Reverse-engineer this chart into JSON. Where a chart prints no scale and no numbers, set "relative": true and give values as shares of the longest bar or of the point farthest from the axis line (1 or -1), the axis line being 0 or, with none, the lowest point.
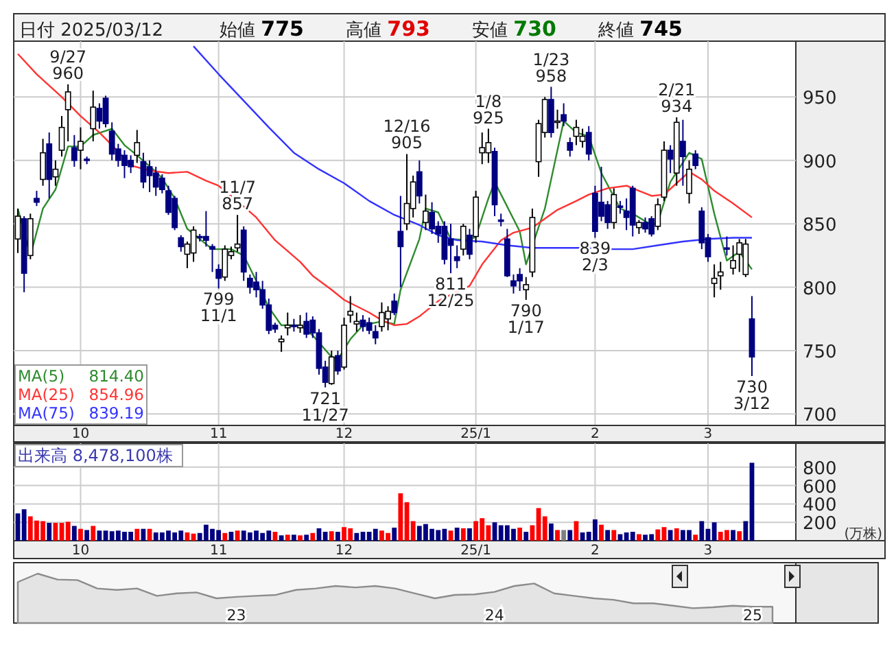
{
  "chart_data": [
    {
      "type": "candlestick",
      "ylim": [
        691,
        994
      ],
      "yticks": [
        700,
        750,
        800,
        850,
        900,
        950
      ],
      "grid": true,
      "legend": "bottom left",
      "categories": [
        null,
        null,
        null,
        null,
        null,
        null,
        null,
        null,
        null,
        null,
        "10",
        null,
        null,
        null,
        null,
        null,
        null,
        null,
        null,
        null,
        null,
        null,
        null,
        null,
        null,
        null,
        null,
        null,
        null,
        null,
        null,
        null,
        "11",
        null,
        null,
        null,
        null,
        null,
        null,
        null,
        null,
        null,
        null,
        null,
        null,
        null,
        null,
        null,
        null,
        null,
        null,
        null,
        "12",
        null,
        null,
        null,
        null,
        null,
        null,
        null,
        null,
        null,
        null,
        null,
        null,
        null,
        null,
        null,
        null,
        null,
        null,
        null,
        null,
        "25/1",
        null,
        null,
        null,
        null,
        null,
        null,
        null,
        null,
        null,
        null,
        null,
        null,
        null,
        null,
        null,
        null,
        null,
        null,
        "2",
        null,
        null,
        null,
        null,
        null,
        null,
        null,
        null,
        null,
        null,
        null,
        null,
        null,
        null,
        null,
        null,
        null,
        "3",
        null,
        null,
        null,
        null,
        null,
        null,
        null
      ],
      "ohlc": [
        [
          838,
          862,
          827,
          856
        ],
        [
          854,
          856,
          796,
          811
        ],
        [
          825,
          858,
          822,
          854
        ],
        [
          870,
          876,
          864,
          867
        ],
        [
          885,
          917,
          880,
          906
        ],
        [
          913,
          922,
          870,
          885
        ],
        [
          887,
          900,
          880,
          893
        ],
        [
          908,
          935,
          903,
          926
        ],
        [
          940,
          960,
          915,
          954
        ],
        [
          910,
          920,
          895,
          900
        ],
        [
          908,
          926,
          893,
          915
        ],
        [
          901,
          903,
          897,
          900
        ],
        [
          925,
          955,
          915,
          942
        ],
        [
          941,
          945,
          925,
          931
        ],
        [
          949,
          951,
          926,
          929
        ],
        [
          923,
          930,
          900,
          905
        ],
        [
          909,
          913,
          895,
          900
        ],
        [
          904,
          908,
          886,
          896
        ],
        [
          900,
          904,
          890,
          895
        ],
        [
          904,
          924,
          898,
          914
        ],
        [
          899,
          906,
          878,
          883
        ],
        [
          895,
          900,
          875,
          888
        ],
        [
          890,
          895,
          872,
          879
        ],
        [
          886,
          889,
          874,
          877
        ],
        [
          876,
          880,
          857,
          859
        ],
        [
          870,
          872,
          845,
          847
        ],
        [
          839,
          841,
          828,
          832
        ],
        [
          826,
          836,
          815,
          834
        ],
        [
          827,
          848,
          820,
          845
        ],
        [
          840,
          842,
          836,
          839
        ],
        [
          840,
          860,
          832,
          837
        ],
        [
          832,
          834,
          812,
          830
        ],
        [
          814,
          818,
          799,
          807
        ],
        [
          808,
          833,
          805,
          830
        ],
        [
          825,
          832,
          822,
          828
        ],
        [
          831,
          857,
          828,
          834
        ],
        [
          845,
          848,
          805,
          812
        ],
        [
          807,
          810,
          795,
          800
        ],
        [
          804,
          812,
          792,
          798
        ],
        [
          798,
          805,
          783,
          786
        ],
        [
          786,
          791,
          763,
          766
        ],
        [
          770,
          772,
          764,
          767
        ],
        [
          757,
          762,
          749,
          759
        ],
        [
          768,
          780,
          762,
          770
        ],
        [
          770,
          775,
          765,
          769
        ],
        [
          768,
          778,
          764,
          770
        ],
        [
          773,
          780,
          760,
          763
        ],
        [
          774,
          777,
          760,
          764
        ],
        [
          764,
          767,
          731,
          736
        ],
        [
          737,
          742,
          721,
          725
        ],
        [
          724,
          750,
          723,
          745
        ],
        [
          746,
          750,
          731,
          734
        ],
        [
          737,
          776,
          735,
          770
        ],
        [
          778,
          793,
          772,
          781
        ],
        [
          771,
          780,
          765,
          773
        ],
        [
          774,
          778,
          765,
          769
        ],
        [
          772,
          776,
          763,
          766
        ],
        [
          765,
          770,
          755,
          760
        ],
        [
          769,
          788,
          765,
          780
        ],
        [
          775,
          785,
          766,
          781
        ],
        [
          789,
          795,
          778,
          780
        ],
        [
          844,
          872,
          800,
          832
        ],
        [
          850,
          905,
          845,
          866
        ],
        [
          862,
          888,
          855,
          883
        ],
        [
          891,
          900,
          866,
          872
        ],
        [
          851,
          873,
          845,
          860
        ],
        [
          859,
          867,
          842,
          846
        ],
        [
          848,
          852,
          835,
          842
        ],
        [
          848,
          852,
          818,
          822
        ],
        [
          838,
          850,
          811,
          833
        ],
        [
          824,
          833,
          815,
          821
        ],
        [
          830,
          850,
          825,
          848
        ],
        [
          841,
          846,
          822,
          826
        ],
        [
          840,
          876,
          835,
          871
        ],
        [
          906,
          922,
          897,
          910
        ],
        [
          906,
          925,
          898,
          914
        ],
        [
          907,
          910,
          856,
          865
        ],
        [
          853,
          858,
          848,
          852
        ],
        [
          838,
          846,
          808,
          809
        ],
        [
          805,
          810,
          795,
          801
        ],
        [
          810,
          815,
          797,
          805
        ],
        [
          798,
          808,
          790,
          802
        ],
        [
          812,
          862,
          808,
          855
        ],
        [
          899,
          932,
          887,
          929
        ],
        [
          922,
          950,
          918,
          948
        ],
        [
          948,
          958,
          918,
          922
        ],
        [
          930,
          940,
          925,
          931
        ],
        [
          936,
          945,
          927,
          931
        ],
        [
          914,
          918,
          903,
          908
        ],
        [
          919,
          932,
          912,
          926
        ],
        [
          915,
          925,
          910,
          919
        ],
        [
          922,
          927,
          900,
          905
        ],
        [
          874,
          880,
          839,
          844
        ],
        [
          867,
          895,
          852,
          856
        ],
        [
          865,
          868,
          846,
          851
        ],
        [
          851,
          878,
          846,
          873
        ],
        [
          864,
          868,
          858,
          863
        ],
        [
          860,
          870,
          845,
          855
        ],
        [
          878,
          880,
          840,
          849
        ],
        [
          847,
          853,
          842,
          851
        ],
        [
          851,
          855,
          843,
          846
        ],
        [
          854,
          856,
          840,
          842
        ],
        [
          848,
          870,
          845,
          865
        ],
        [
          871,
          915,
          868,
          908
        ],
        [
          908,
          912,
          890,
          901
        ],
        [
          890,
          934,
          880,
          930
        ],
        [
          915,
          932,
          880,
          903
        ],
        [
          874,
          900,
          866,
          893
        ],
        [
          905,
          908,
          893,
          896
        ],
        [
          860,
          863,
          830,
          835
        ],
        [
          839,
          842,
          820,
          824
        ],
        [
          803,
          818,
          792,
          807
        ],
        [
          809,
          820,
          798,
          812
        ],
        [
          831,
          840,
          825,
          830
        ],
        [
          815,
          833,
          810,
          821
        ],
        [
          826,
          838,
          812,
          835
        ],
        [
          810,
          838,
          808,
          834
        ],
        [
          775,
          793,
          730,
          745
        ]
      ],
      "series": [
        {
          "name": "MA(5)",
          "type": "line",
          "color": "#2e8b2e",
          "values": [
            862,
            null,
            825,
            null,
            862,
            null,
            877,
            null,
            911,
            null,
            911,
            null,
            920,
            null,
            null,
            925,
            null,
            912,
            null,
            904,
            null,
            null,
            891,
            886,
            null,
            870,
            null,
            846,
            null,
            838,
            null,
            830,
            null,
            null,
            830,
            null,
            825,
            null,
            805,
            null,
            784,
            null,
            770,
            null,
            null,
            770,
            null,
            762,
            null,
            null,
            745,
            743,
            null,
            759,
            null,
            770,
            null,
            null,
            773,
            null,
            771,
            798,
            null,
            null,
            838,
            862,
            null,
            859,
            null,
            838,
            null,
            null,
            837,
            840,
            null,
            870,
            883,
            null,
            null,
            null,
            844,
            818,
            null,
            null,
            862,
            null,
            null,
            931,
            null,
            922,
            null,
            919,
            null,
            890,
            null,
            null,
            862,
            null,
            858,
            null,
            null,
            849,
            851,
            null,
            883,
            null,
            null,
            906,
            null,
            901,
            null,
            858,
            null,
            821,
            null,
            828,
            null,
            814
          ]
        },
        {
          "name": "MA(25)",
          "type": "line",
          "color": "#ff3333",
          "values": [
            984,
            null,
            null,
            968,
            null,
            null,
            null,
            950,
            null,
            null,
            935,
            null,
            null,
            922,
            null,
            912,
            null,
            null,
            896,
            null,
            null,
            892,
            null,
            null,
            890,
            null,
            null,
            891,
            null,
            null,
            884,
            null,
            880,
            null,
            null,
            868,
            null,
            null,
            855,
            null,
            null,
            837,
            null,
            null,
            null,
            820,
            null,
            809,
            null,
            null,
            798,
            null,
            790,
            null,
            null,
            null,
            780,
            null,
            774,
            null,
            770,
            null,
            771,
            null,
            777,
            null,
            null,
            789,
            null,
            794,
            null,
            null,
            801,
            null,
            818,
            null,
            null,
            837,
            null,
            843,
            null,
            null,
            847,
            null,
            854,
            null,
            861,
            null,
            null,
            868,
            null,
            873,
            null,
            null,
            878,
            null,
            null,
            880,
            null,
            876,
            null,
            872,
            null,
            873,
            null,
            882,
            null,
            891,
            null,
            885,
            null,
            876,
            null,
            null,
            866,
            null,
            null,
            855
          ]
        },
        {
          "name": "MA(75)",
          "type": "line",
          "color": "#3333ff",
          "values": [
            null,
            null,
            null,
            null,
            null,
            null,
            null,
            null,
            null,
            null,
            null,
            null,
            null,
            null,
            null,
            null,
            null,
            null,
            null,
            null,
            null,
            null,
            null,
            null,
            null,
            null,
            null,
            null,
            990,
            null,
            null,
            null,
            968,
            null,
            null,
            null,
            947,
            null,
            null,
            null,
            926,
            null,
            null,
            null,
            906,
            null,
            null,
            null,
            893,
            null,
            null,
            null,
            882,
            null,
            null,
            null,
            868,
            null,
            null,
            null,
            857,
            null,
            null,
            null,
            849,
            null,
            null,
            841,
            null,
            null,
            837,
            null,
            null,
            null,
            836,
            null,
            null,
            null,
            833,
            null,
            null,
            null,
            831,
            null,
            null,
            null,
            831,
            null,
            null,
            null,
            831,
            null,
            null,
            null,
            830,
            null,
            null,
            null,
            830,
            null,
            null,
            null,
            833,
            null,
            null,
            null,
            836,
            null,
            null,
            null,
            838,
            null,
            null,
            null,
            839,
            null,
            null,
            839
          ]
        }
      ],
      "annotations": [
        "日付 2025/03/12",
        "始値 **775**",
        "高値 **793**",
        "安値 **730**",
        "終値 **745**",
        "814.40",
        "854.96",
        "839.19",
        {
          "text": "9/27\n960",
          "y": 960
        },
        {
          "text": "799\n11/1",
          "y": 799
        },
        {
          "text": "11/7\n857",
          "y": 857
        },
        {
          "text": "721\n11/27",
          "y": 721
        },
        {
          "text": "12/16\n905",
          "y": 905
        },
        {
          "text": "811\n12/25",
          "y": 811
        },
        {
          "text": "1/8\n925",
          "y": 925
        },
        {
          "text": "790\n1/17",
          "y": 790
        },
        {
          "text": "1/23\n958",
          "y": 958
        },
        {
          "text": "839\n2/3",
          "y": 839
        },
        {
          "text": "2/21\n934",
          "y": 934
        },
        {
          "text": "730\n3/12",
          "y": 730
        }
      ]
    },
    {
      "type": "bar",
      "title": "出来高 8,478,100株",
      "ylabel": "(万株)",
      "ylim": [
        0,
        1060
      ],
      "yticks": [
        200,
        400,
        600,
        800
      ],
      "grid": true,
      "categories": [
        null,
        null,
        null,
        null,
        null,
        null,
        null,
        null,
        null,
        null,
        "10",
        null,
        null,
        null,
        null,
        null,
        null,
        null,
        null,
        null,
        null,
        null,
        null,
        null,
        null,
        null,
        null,
        null,
        null,
        null,
        null,
        null,
        "11",
        null,
        null,
        null,
        null,
        null,
        null,
        null,
        null,
        null,
        null,
        null,
        null,
        null,
        null,
        null,
        null,
        null,
        null,
        null,
        "12",
        null,
        null,
        null,
        null,
        null,
        null,
        null,
        null,
        null,
        null,
        null,
        null,
        null,
        null,
        null,
        null,
        null,
        null,
        null,
        null,
        "25/1",
        null,
        null,
        null,
        null,
        null,
        null,
        null,
        null,
        null,
        null,
        null,
        null,
        null,
        null,
        null,
        null,
        null,
        null,
        "2",
        null,
        null,
        null,
        null,
        null,
        null,
        null,
        null,
        null,
        null,
        null,
        null,
        null,
        null,
        null,
        null,
        null,
        "3",
        null,
        null,
        null,
        null,
        null,
        null,
        null
      ],
      "values": [
        297,
        342,
        265,
        219,
        213,
        194,
        194,
        194,
        206,
        161,
        129,
        116,
        161,
        110,
        110,
        103,
        110,
        97,
        97,
        129,
        129,
        129,
        90,
        90,
        110,
        90,
        110,
        90,
        77,
        84,
        174,
        129,
        116,
        84,
        97,
        110,
        110,
        90,
        110,
        84,
        110,
        97,
        58,
        65,
        65,
        58,
        65,
        84,
        135,
        97,
        103,
        97,
        148,
        135,
        84,
        97,
        97,
        129,
        110,
        84,
        142,
        516,
        419,
        213,
        161,
        181,
        129,
        116,
        129,
        110,
        142,
        135,
        135,
        213,
        245,
        168,
        200,
        168,
        168,
        129,
        142,
        97,
        168,
        355,
        265,
        187,
        116,
        116,
        116,
        213,
        90,
        97,
        232,
        174,
        116,
        116,
        71,
        90,
        97,
        71,
        65,
        71,
        123,
        148,
        116,
        135,
        116,
        116,
        65,
        213,
        129,
        200,
        97,
        116,
        116,
        103,
        213,
        847.81
      ],
      "colors": [
        "#000080",
        "#000080",
        "#ff0000",
        "#ff0000",
        "#ff0000",
        "#000080",
        "#ff0000",
        "#ff0000",
        "#ff0000",
        "#000080",
        "#ff0000",
        "#000080",
        "#ff0000",
        "#000080",
        "#000080",
        "#000080",
        "#000080",
        "#000080",
        "#000080",
        "#ff0000",
        "#000080",
        "#ff0000",
        "#000080",
        "#000080",
        "#000080",
        "#000080",
        "#000080",
        "#ff0000",
        "#ff0000",
        "#000080",
        "#000080",
        "#000080",
        "#000080",
        "#ff0000",
        "#000080",
        "#ff0000",
        "#000080",
        "#000080",
        "#000080",
        "#000080",
        "#000080",
        "#ff0000",
        "#000080",
        "#ff0000",
        "#000080",
        "#ff0000",
        "#000080",
        "#ff0000",
        "#000080",
        "#000080",
        "#ff0000",
        "#000080",
        "#ff0000",
        "#ff0000",
        "#000080",
        "#000080",
        "#000080",
        "#000080",
        "#ff0000",
        "#ff0000",
        "#000080",
        "#ff0000",
        "#ff0000",
        "#ff0000",
        "#000080",
        "#000080",
        "#000080",
        "#000080",
        "#000080",
        "#ff0000",
        "#000080",
        "#ff0000",
        "#000080",
        "#ff0000",
        "#ff0000",
        "#ff0000",
        "#000080",
        "#000080",
        "#000080",
        "#000080",
        "#ff0000",
        "#000080",
        "#ff0000",
        "#ff0000",
        "#ff0000",
        "#000080",
        "#ff0000",
        "#808080",
        "#000080",
        "#ff0000",
        "#000080",
        "#000080",
        "#000080",
        "#ff0000",
        "#000080",
        "#ff0000",
        "#000080",
        "#000080",
        "#000080",
        "#ff0000",
        "#000080",
        "#000080",
        "#ff0000",
        "#ff0000",
        "#000080",
        "#ff0000",
        "#000080",
        "#000080",
        "#ff0000",
        "#000080",
        "#000080",
        "#000080",
        "#ff0000",
        "#ff0000",
        "#000080",
        "#ff0000",
        "#000080",
        "#000080"
      ]
    },
    {
      "type": "area",
      "relative": true,
      "color": "#8c8c8c",
      "categories": [
        null,
        null,
        null,
        null,
        null,
        null,
        null,
        null,
        null,
        null,
        null,
        "23",
        null,
        null,
        null,
        null,
        null,
        null,
        null,
        null,
        null,
        null,
        null,
        null,
        "24",
        null,
        null,
        null,
        null,
        null,
        null,
        null,
        null,
        null,
        null,
        null,
        null,
        "25",
        null
      ],
      "values": [
        0.83,
        1,
        0.88,
        0.87,
        0.7,
        0.67,
        0.7,
        0.55,
        0.6,
        0.62,
        0.5,
        0.53,
        0.55,
        0.57,
        0.67,
        0.7,
        0.75,
        0.72,
        0.75,
        0.7,
        0.6,
        0.5,
        0.57,
        0.58,
        0.63,
        0.75,
        0.8,
        0.6,
        0.55,
        0.5,
        0.47,
        0.4,
        0.4,
        0.35,
        0.3,
        0.32,
        0.35,
        0.33,
        0.33
      ]
    }
  ]
}
